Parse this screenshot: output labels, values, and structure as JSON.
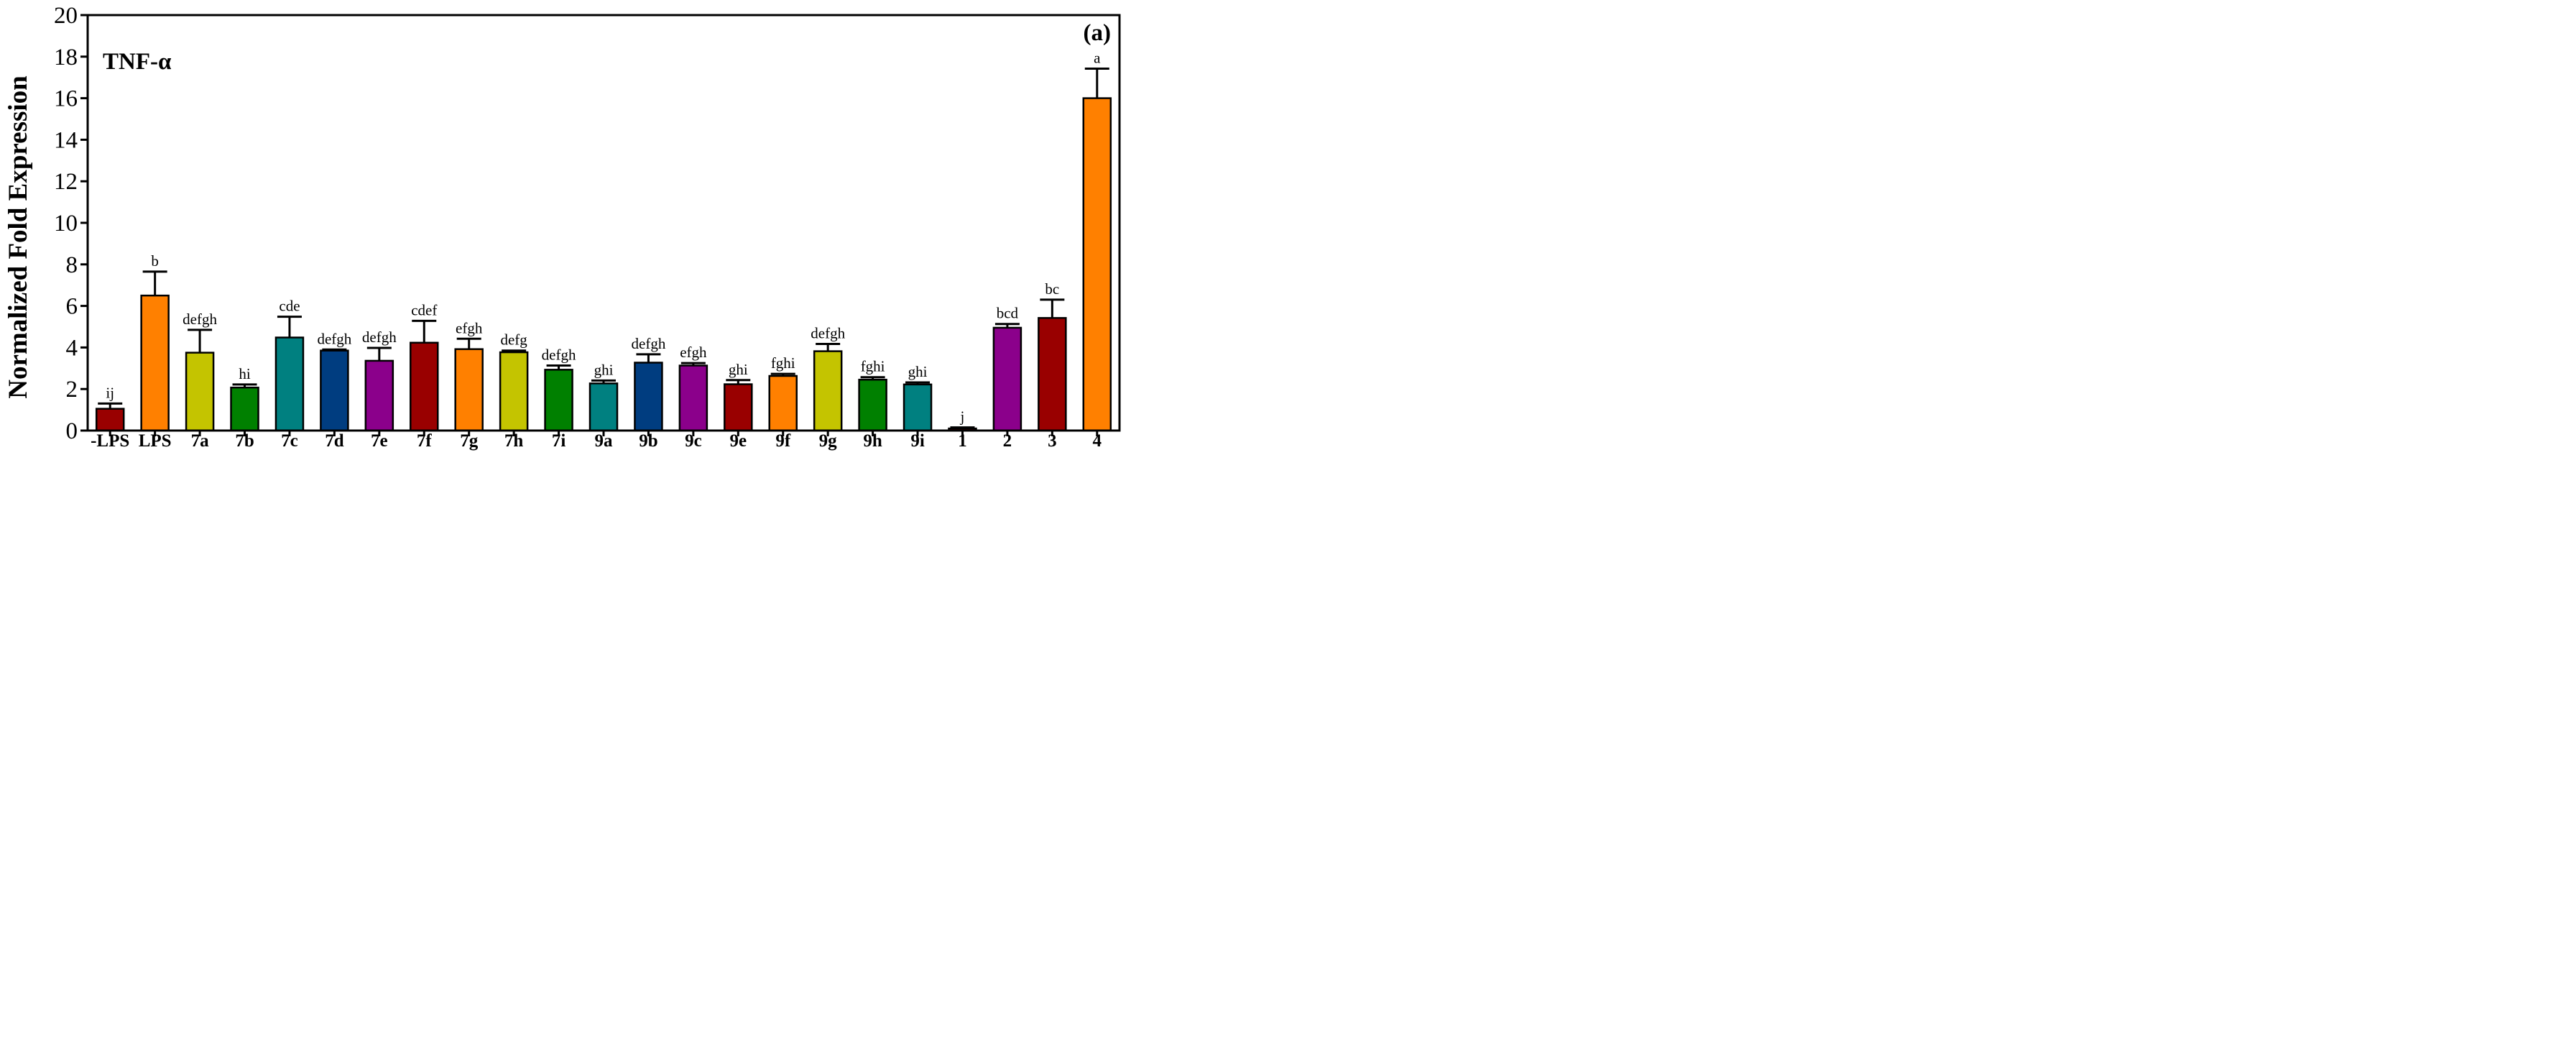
{
  "chart_data": {
    "type": "bar",
    "ylabel": "Normalized Fold Expression",
    "xlabel": "",
    "ylim": [
      0,
      20
    ],
    "yticks": [
      0,
      2,
      4,
      6,
      8,
      10,
      12,
      14,
      16,
      18,
      20
    ],
    "grid": false,
    "annotations": {
      "gene": "TNF-α",
      "panel": "(a)"
    },
    "categories": [
      "-LPS",
      "LPS",
      "7a",
      "7b",
      "7c",
      "7d",
      "7e",
      "7f",
      "7g",
      "7h",
      "7i",
      "9a",
      "9b",
      "9c",
      "9e",
      "9f",
      "9g",
      "9h",
      "9i",
      "1",
      "2",
      "3",
      "4"
    ],
    "values": [
      1.05,
      6.5,
      3.75,
      2.07,
      4.48,
      3.85,
      3.36,
      4.23,
      3.92,
      3.77,
      2.93,
      2.27,
      3.27,
      3.13,
      2.23,
      2.63,
      3.82,
      2.45,
      2.22,
      0.1,
      4.95,
      5.42,
      16.0
    ],
    "errors": [
      0.25,
      1.15,
      1.1,
      0.15,
      1.0,
      0.05,
      0.62,
      1.05,
      0.5,
      0.08,
      0.2,
      0.14,
      0.4,
      0.12,
      0.2,
      0.1,
      0.35,
      0.12,
      0.1,
      0.05,
      0.18,
      0.88,
      1.42
    ],
    "significance": [
      "ij",
      "b",
      "defgh",
      "hi",
      "cde",
      "defgh",
      "defgh",
      "cdef",
      "efgh",
      "defg",
      "defgh",
      "ghi",
      "defgh",
      "efgh",
      "ghi",
      "fghi",
      "defgh",
      "fghi",
      "ghi",
      "j",
      "bcd",
      "bc",
      "a"
    ],
    "colors": [
      "#990000",
      "#ff8000",
      "#c4c400",
      "#008000",
      "#008080",
      "#003d80",
      "#8b008b",
      "#990000",
      "#ff8000",
      "#c4c400",
      "#008000",
      "#008080",
      "#003d80",
      "#8b008b",
      "#990000",
      "#ff8000",
      "#c4c400",
      "#008000",
      "#008080",
      "#990000",
      "#8b008b",
      "#990000",
      "#ff8000"
    ]
  }
}
